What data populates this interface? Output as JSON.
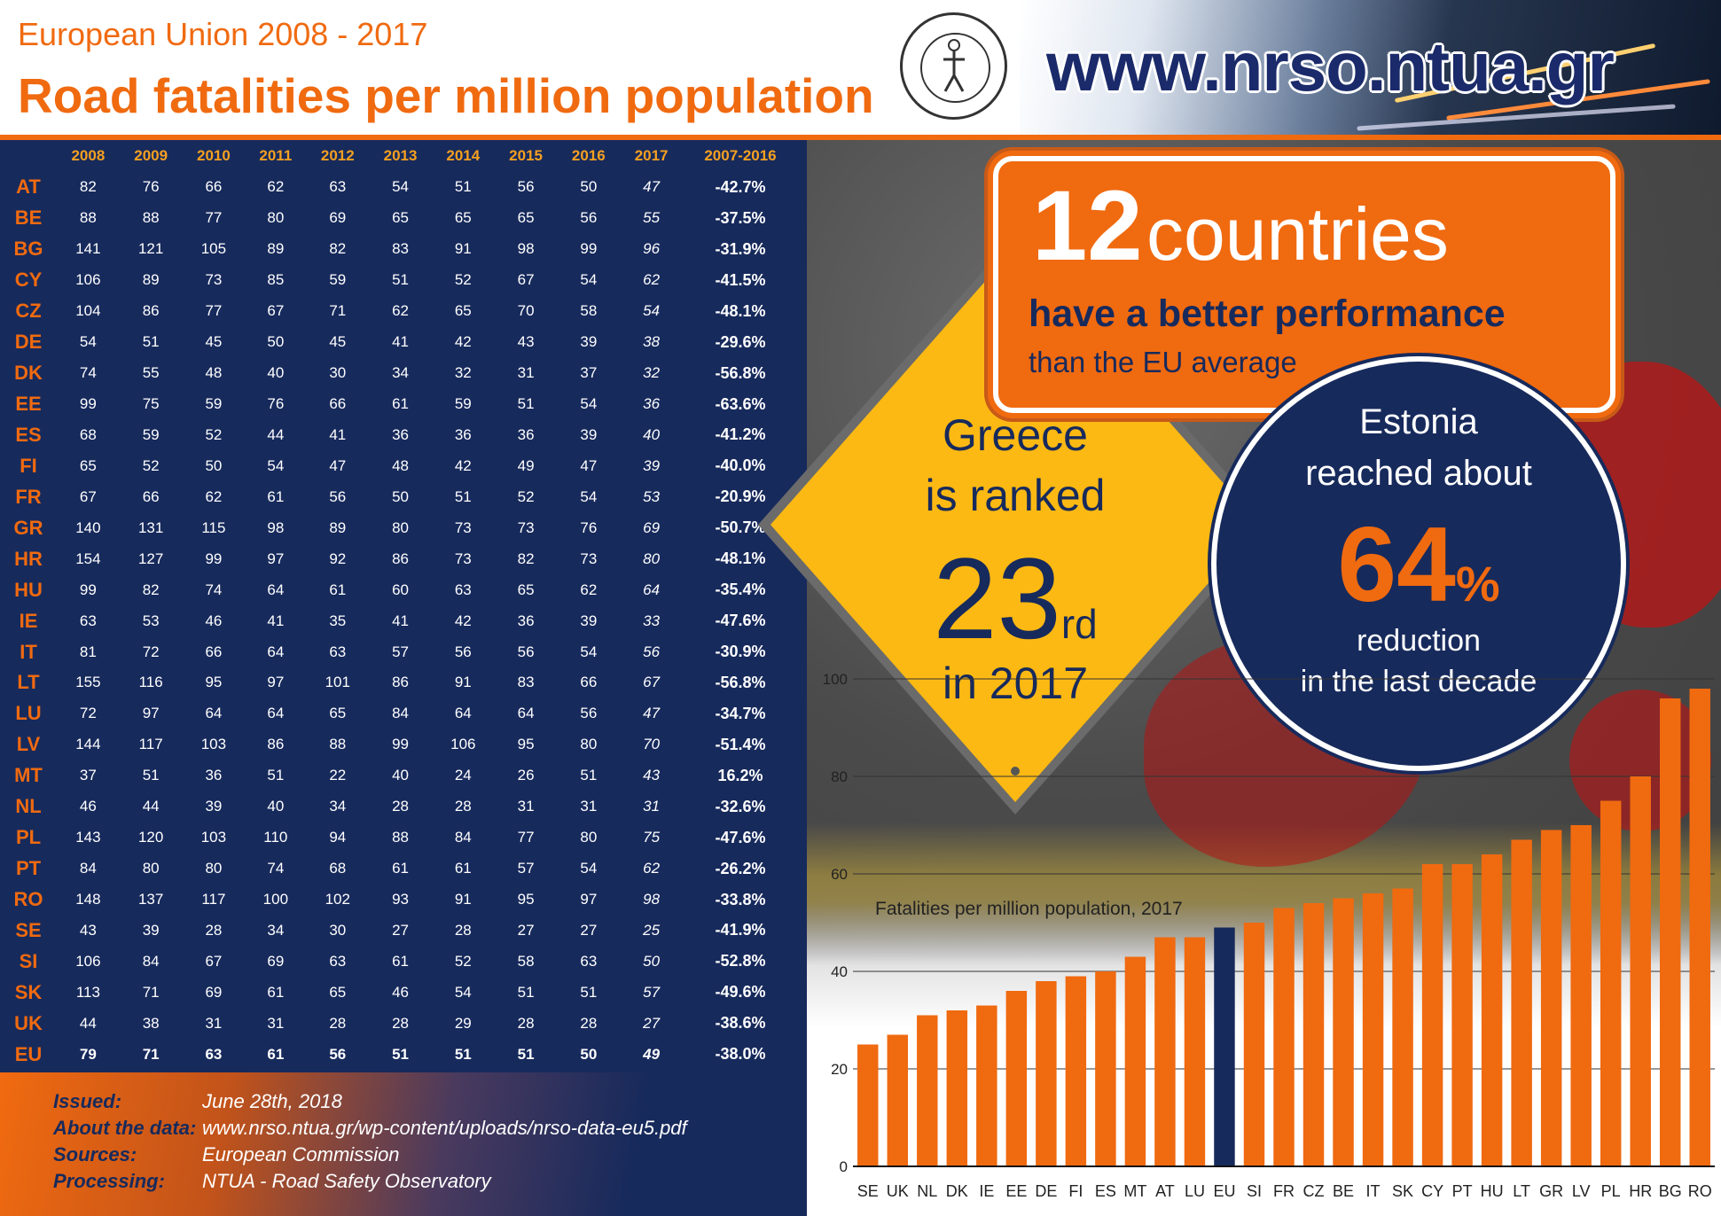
{
  "header": {
    "subtitle": "European Union 2008 - 2017",
    "title": "Road fatalities per million population",
    "website": "www.nrso.ntua.gr"
  },
  "table": {
    "columns": [
      "2008",
      "2009",
      "2010",
      "2011",
      "2012",
      "2013",
      "2014",
      "2015",
      "2016",
      "2017",
      "2007-2016"
    ],
    "rows": [
      {
        "code": "AT",
        "values": [
          "82",
          "76",
          "66",
          "62",
          "63",
          "54",
          "51",
          "56",
          "50",
          "47"
        ],
        "change": "-42.7%"
      },
      {
        "code": "BE",
        "values": [
          "88",
          "88",
          "77",
          "80",
          "69",
          "65",
          "65",
          "65",
          "56",
          "55"
        ],
        "change": "-37.5%"
      },
      {
        "code": "BG",
        "values": [
          "141",
          "121",
          "105",
          "89",
          "82",
          "83",
          "91",
          "98",
          "99",
          "96"
        ],
        "change": "-31.9%"
      },
      {
        "code": "CY",
        "values": [
          "106",
          "89",
          "73",
          "85",
          "59",
          "51",
          "52",
          "67",
          "54",
          "62"
        ],
        "change": "-41.5%"
      },
      {
        "code": "CZ",
        "values": [
          "104",
          "86",
          "77",
          "67",
          "71",
          "62",
          "65",
          "70",
          "58",
          "54"
        ],
        "change": "-48.1%"
      },
      {
        "code": "DE",
        "values": [
          "54",
          "51",
          "45",
          "50",
          "45",
          "41",
          "42",
          "43",
          "39",
          "38"
        ],
        "change": "-29.6%"
      },
      {
        "code": "DK",
        "values": [
          "74",
          "55",
          "48",
          "40",
          "30",
          "34",
          "32",
          "31",
          "37",
          "32"
        ],
        "change": "-56.8%"
      },
      {
        "code": "EE",
        "values": [
          "99",
          "75",
          "59",
          "76",
          "66",
          "61",
          "59",
          "51",
          "54",
          "36"
        ],
        "change": "-63.6%"
      },
      {
        "code": "ES",
        "values": [
          "68",
          "59",
          "52",
          "44",
          "41",
          "36",
          "36",
          "36",
          "39",
          "40"
        ],
        "change": "-41.2%"
      },
      {
        "code": "FI",
        "values": [
          "65",
          "52",
          "50",
          "54",
          "47",
          "48",
          "42",
          "49",
          "47",
          "39"
        ],
        "change": "-40.0%"
      },
      {
        "code": "FR",
        "values": [
          "67",
          "66",
          "62",
          "61",
          "56",
          "50",
          "51",
          "52",
          "54",
          "53"
        ],
        "change": "-20.9%"
      },
      {
        "code": "GR",
        "values": [
          "140",
          "131",
          "115",
          "98",
          "89",
          "80",
          "73",
          "73",
          "76",
          "69"
        ],
        "change": "-50.7%"
      },
      {
        "code": "HR",
        "values": [
          "154",
          "127",
          "99",
          "97",
          "92",
          "86",
          "73",
          "82",
          "73",
          "80"
        ],
        "change": "-48.1%"
      },
      {
        "code": "HU",
        "values": [
          "99",
          "82",
          "74",
          "64",
          "61",
          "60",
          "63",
          "65",
          "62",
          "64"
        ],
        "change": "-35.4%"
      },
      {
        "code": "IE",
        "values": [
          "63",
          "53",
          "46",
          "41",
          "35",
          "41",
          "42",
          "36",
          "39",
          "33"
        ],
        "change": "-47.6%"
      },
      {
        "code": "IT",
        "values": [
          "81",
          "72",
          "66",
          "64",
          "63",
          "57",
          "56",
          "56",
          "54",
          "56"
        ],
        "change": "-30.9%"
      },
      {
        "code": "LT",
        "values": [
          "155",
          "116",
          "95",
          "97",
          "101",
          "86",
          "91",
          "83",
          "66",
          "67"
        ],
        "change": "-56.8%"
      },
      {
        "code": "LU",
        "values": [
          "72",
          "97",
          "64",
          "64",
          "65",
          "84",
          "64",
          "64",
          "56",
          "47"
        ],
        "change": "-34.7%"
      },
      {
        "code": "LV",
        "values": [
          "144",
          "117",
          "103",
          "86",
          "88",
          "99",
          "106",
          "95",
          "80",
          "70"
        ],
        "change": "-51.4%"
      },
      {
        "code": "MT",
        "values": [
          "37",
          "51",
          "36",
          "51",
          "22",
          "40",
          "24",
          "26",
          "51",
          "43"
        ],
        "change": "16.2%"
      },
      {
        "code": "NL",
        "values": [
          "46",
          "44",
          "39",
          "40",
          "34",
          "28",
          "28",
          "31",
          "31",
          "31"
        ],
        "change": "-32.6%"
      },
      {
        "code": "PL",
        "values": [
          "143",
          "120",
          "103",
          "110",
          "94",
          "88",
          "84",
          "77",
          "80",
          "75"
        ],
        "change": "-47.6%"
      },
      {
        "code": "PT",
        "values": [
          "84",
          "80",
          "80",
          "74",
          "68",
          "61",
          "61",
          "57",
          "54",
          "62"
        ],
        "change": "-26.2%"
      },
      {
        "code": "RO",
        "values": [
          "148",
          "137",
          "117",
          "100",
          "102",
          "93",
          "91",
          "95",
          "97",
          "98"
        ],
        "change": "-33.8%"
      },
      {
        "code": "SE",
        "values": [
          "43",
          "39",
          "28",
          "34",
          "30",
          "27",
          "28",
          "27",
          "27",
          "25"
        ],
        "change": "-41.9%"
      },
      {
        "code": "SI",
        "values": [
          "106",
          "84",
          "67",
          "69",
          "63",
          "61",
          "52",
          "58",
          "63",
          "50"
        ],
        "change": "-52.8%"
      },
      {
        "code": "SK",
        "values": [
          "113",
          "71",
          "69",
          "61",
          "65",
          "46",
          "54",
          "51",
          "51",
          "57"
        ],
        "change": "-49.6%"
      },
      {
        "code": "UK",
        "values": [
          "44",
          "38",
          "31",
          "31",
          "28",
          "28",
          "29",
          "28",
          "28",
          "27"
        ],
        "change": "-38.6%"
      },
      {
        "code": "EU",
        "values": [
          "79",
          "71",
          "63",
          "61",
          "56",
          "51",
          "51",
          "51",
          "50",
          "49"
        ],
        "change": "-38.0%"
      }
    ]
  },
  "footer": {
    "issued_label": "Issued:",
    "issued_value": "June 28th, 2018",
    "about_label": "About the data:",
    "about_value": "www.nrso.ntua.gr/wp-content/uploads/nrso-data-eu5.pdf",
    "sources_label": "Sources:",
    "sources_value": "European Commission",
    "processing_label": "Processing:",
    "processing_value": "NTUA - Road Safety Observatory"
  },
  "greece_sign": {
    "line1": "Greece",
    "line2": "is ranked",
    "rank": "23",
    "suffix": "rd",
    "line4": "in 2017"
  },
  "orange_sign": {
    "number": "12",
    "word": "countries",
    "line2": "have a better performance",
    "line3": "than the EU average"
  },
  "estonia_circle": {
    "line1": "Estonia",
    "line2": "reached about",
    "value": "64",
    "unit": "%",
    "line4": "reduction",
    "line5": "in the last decade"
  },
  "colors": {
    "orange": "#f06a10",
    "navy": "#172a5c",
    "sign_yellow": "#fdb913",
    "eu_bar": "#172a5c"
  },
  "chart_data": {
    "type": "bar",
    "title": "Fatalities per million population, 2017",
    "categories": [
      "SE",
      "UK",
      "NL",
      "DK",
      "IE",
      "EE",
      "DE",
      "FI",
      "ES",
      "MT",
      "AT",
      "LU",
      "EU",
      "SI",
      "FR",
      "CZ",
      "BE",
      "IT",
      "SK",
      "CY",
      "PT",
      "HU",
      "LT",
      "GR",
      "LV",
      "PL",
      "HR",
      "BG",
      "RO"
    ],
    "values": [
      25,
      27,
      31,
      32,
      33,
      36,
      38,
      39,
      40,
      43,
      47,
      47,
      49,
      50,
      53,
      54,
      55,
      56,
      57,
      62,
      62,
      64,
      67,
      69,
      70,
      75,
      80,
      96,
      98
    ],
    "highlight": "EU",
    "yticks": [
      0,
      20,
      40,
      60,
      80,
      100
    ],
    "ylim": [
      0,
      100
    ],
    "grid": true
  }
}
